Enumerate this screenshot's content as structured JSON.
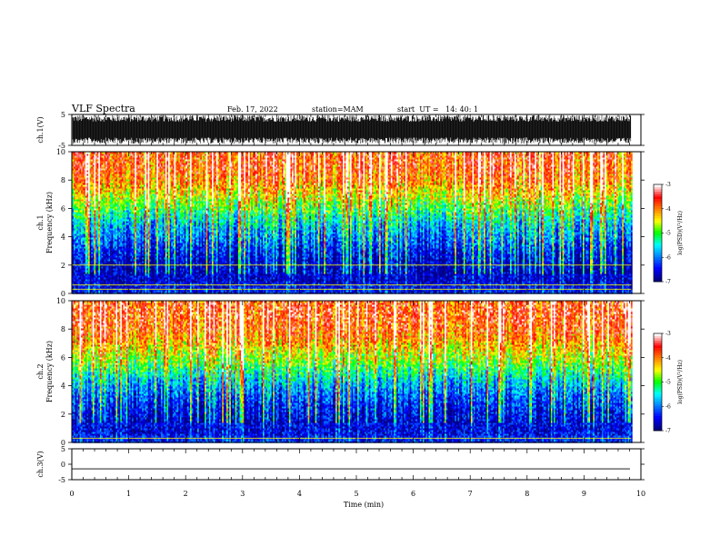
{
  "header": {
    "title": "VLF Spectra",
    "date": "Feb. 17, 2022",
    "station": "station=MAM",
    "start": "start  UT =   14: 40: 1"
  },
  "chart_data": [
    {
      "type": "line",
      "name": "ch1-waveform",
      "ylabel": "ch.1(V)",
      "ylim": [
        -5,
        5
      ],
      "yticks": [
        "5",
        "-5"
      ],
      "xlim": [
        0,
        10
      ],
      "waveform_amplitude_range": [
        -4.5,
        4.8
      ]
    },
    {
      "type": "heatmap",
      "name": "ch1-spectrogram",
      "ylabel": "ch.1\nFrequency (kHz)",
      "ylabel_lines": [
        "ch.1",
        "Frequency (kHz)"
      ],
      "ylim": [
        0,
        10
      ],
      "yticks": [
        "0",
        "2",
        "4",
        "6",
        "8",
        "10"
      ],
      "xlim": [
        0,
        10
      ],
      "data_end_min": 9.83,
      "colorbar": {
        "label": "log(PSD)(V²/Hz)",
        "range": [
          -7,
          -3
        ],
        "ticks": [
          "-3",
          "-4",
          "-5",
          "-6",
          "-7"
        ]
      },
      "approx_log_psd_by_khz": [
        {
          "f": 0.0,
          "v": -6.4
        },
        {
          "f": 1.0,
          "v": -6.7
        },
        {
          "f": 2.0,
          "v": -6.6
        },
        {
          "f": 3.0,
          "v": -6.3
        },
        {
          "f": 4.0,
          "v": -5.9
        },
        {
          "f": 5.0,
          "v": -5.5
        },
        {
          "f": 6.0,
          "v": -4.9
        },
        {
          "f": 7.0,
          "v": -4.3
        },
        {
          "f": 8.0,
          "v": -3.8
        },
        {
          "f": 9.0,
          "v": -3.6
        },
        {
          "f": 10.0,
          "v": -3.6
        }
      ],
      "horizontal_lines_khz": [
        0.3,
        0.6,
        2.0
      ]
    },
    {
      "type": "heatmap",
      "name": "ch2-spectrogram",
      "ylabel": "ch.2\nFrequency (kHz)",
      "ylabel_lines": [
        "ch.2",
        "Frequency (kHz)"
      ],
      "ylim": [
        0,
        10
      ],
      "yticks": [
        "0",
        "2",
        "4",
        "6",
        "8",
        "10"
      ],
      "xlim": [
        0,
        10
      ],
      "data_end_min": 9.83,
      "colorbar": {
        "label": "log(PSD)(V²/Hz)",
        "range": [
          -7,
          -3
        ],
        "ticks": [
          "-3",
          "-4",
          "-5",
          "-6",
          "-7"
        ]
      },
      "approx_log_psd_by_khz": [
        {
          "f": 0.0,
          "v": -6.3
        },
        {
          "f": 1.0,
          "v": -6.6
        },
        {
          "f": 2.0,
          "v": -6.4
        },
        {
          "f": 3.0,
          "v": -6.1
        },
        {
          "f": 4.0,
          "v": -5.7
        },
        {
          "f": 5.0,
          "v": -5.1
        },
        {
          "f": 6.0,
          "v": -4.5
        },
        {
          "f": 7.0,
          "v": -4.0
        },
        {
          "f": 8.0,
          "v": -3.6
        },
        {
          "f": 9.0,
          "v": -3.5
        },
        {
          "f": 10.0,
          "v": -3.5
        }
      ],
      "horizontal_lines_khz": [
        0.3
      ]
    },
    {
      "type": "line",
      "name": "ch3-waveform",
      "ylabel": "ch.3(V)",
      "ylim": [
        -5,
        5
      ],
      "yticks": [
        "5",
        "0",
        "-5"
      ],
      "xlim": [
        0,
        10
      ],
      "constant_value": -1.5
    }
  ],
  "xaxis": {
    "label": "Time (min)",
    "ticks": [
      "0",
      "1",
      "2",
      "3",
      "4",
      "5",
      "6",
      "7",
      "8",
      "9",
      "10"
    ]
  },
  "colors": {
    "colormap": [
      "#000080",
      "#0000ff",
      "#0080ff",
      "#00ffff",
      "#00ff00",
      "#ffff00",
      "#ff8000",
      "#ff0000",
      "#ffffff"
    ]
  }
}
